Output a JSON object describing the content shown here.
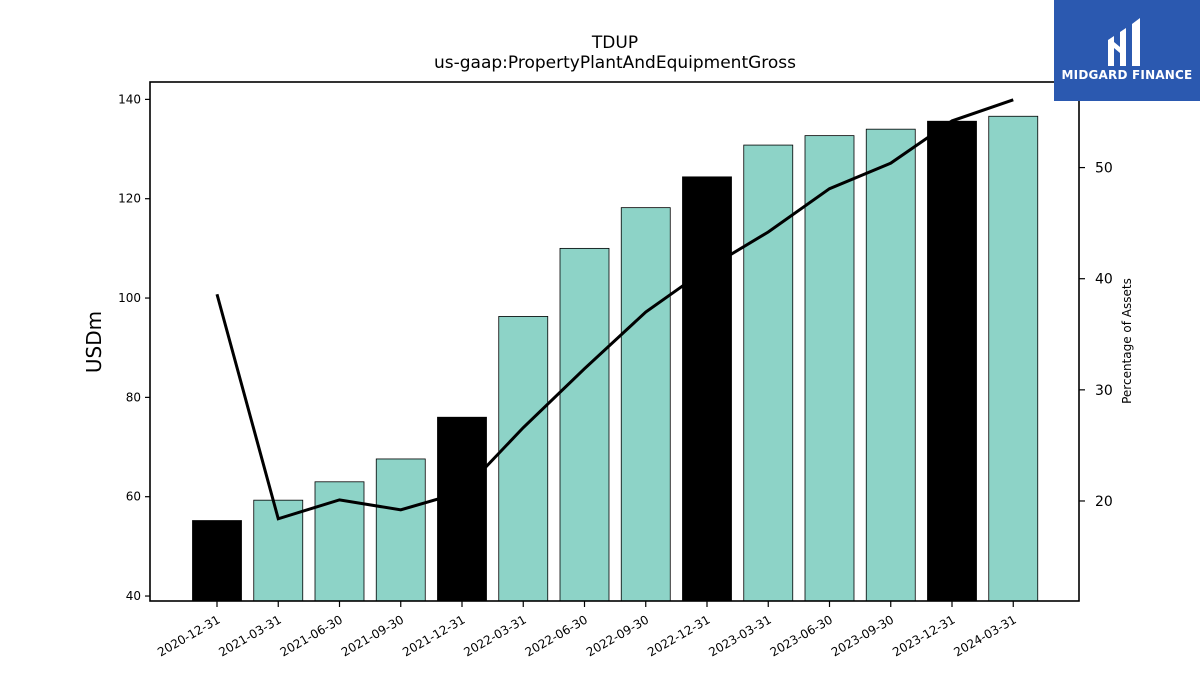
{
  "chart_data": {
    "type": "bar",
    "title": "TDUP",
    "subtitle": "us-gaap:PropertyPlantAndEquipmentGross",
    "ylabel": "USDm",
    "ylabel_right": "Percentage of Assets",
    "ylim": [
      39,
      143.5
    ],
    "ylim_right": [
      11,
      57.7
    ],
    "yticks": [
      40,
      60,
      80,
      100,
      120,
      140
    ],
    "yticks_right": [
      20,
      30,
      40,
      50
    ],
    "categories": [
      "2020-12-31",
      "2021-03-31",
      "2021-06-30",
      "2021-09-30",
      "2021-12-31",
      "2022-03-31",
      "2022-06-30",
      "2022-09-30",
      "2022-12-31",
      "2023-03-31",
      "2023-06-30",
      "2023-09-30",
      "2023-12-31",
      "2024-03-31"
    ],
    "series": [
      {
        "type": "bar",
        "axis": "left",
        "values": [
          55.2,
          59.3,
          63.0,
          67.6,
          76.0,
          96.3,
          110.0,
          118.2,
          124.4,
          130.8,
          132.7,
          134.0,
          135.6,
          136.6
        ],
        "colors": [
          "#000000",
          "#8dd3c7",
          "#8dd3c7",
          "#8dd3c7",
          "#000000",
          "#8dd3c7",
          "#8dd3c7",
          "#8dd3c7",
          "#000000",
          "#8dd3c7",
          "#8dd3c7",
          "#8dd3c7",
          "#000000",
          "#8dd3c7"
        ]
      },
      {
        "type": "line",
        "axis": "right",
        "color": "#000000",
        "values": [
          38.6,
          18.4,
          20.1,
          19.2,
          20.8,
          26.6,
          31.9,
          37.0,
          40.9,
          44.2,
          48.1,
          50.4,
          54.2,
          56.1
        ]
      }
    ],
    "grid": false,
    "legend": "none"
  },
  "logo": {
    "text": "MIDGARD FINANCE",
    "bg_color": "#2b59b0"
  }
}
